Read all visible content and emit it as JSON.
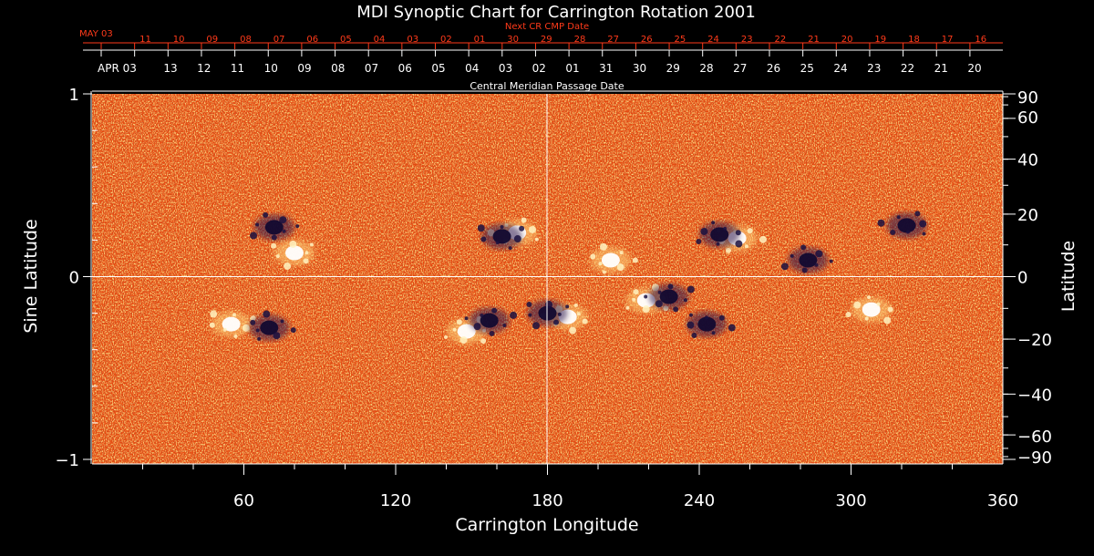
{
  "chart_data": {
    "type": "heatmap",
    "title": "MDI Synoptic Chart for Carrington Rotation 2001",
    "xlabel": "Carrington Longitude",
    "ylabel_left": "Sine Latitude",
    "ylabel_right": "Latitude",
    "xlim": [
      0,
      360
    ],
    "ylim": [
      -1,
      1
    ],
    "x_ticks": [
      60,
      120,
      180,
      240,
      300,
      360
    ],
    "y_ticks_left": [
      {
        "value": 1,
        "label": "1"
      },
      {
        "value": 0,
        "label": "0"
      },
      {
        "value": -1,
        "label": "−1"
      }
    ],
    "y_ticks_right_degrees": [
      {
        "deg": 90,
        "label": "90"
      },
      {
        "deg": 60,
        "label": "60"
      },
      {
        "deg": 40,
        "label": "40"
      },
      {
        "deg": 20,
        "label": "20"
      },
      {
        "deg": 0,
        "label": "0"
      },
      {
        "deg": -20,
        "label": "−20"
      },
      {
        "deg": -40,
        "label": "−40"
      },
      {
        "deg": -60,
        "label": "−60"
      },
      {
        "deg": -90,
        "label": "−90"
      }
    ],
    "central_meridian_label": "Central Meridian Passage Date",
    "next_cr_label": "Next CR CMP Date",
    "next_cr_month": "MAY 03",
    "next_cr_dates": [
      "11",
      "10",
      "09",
      "08",
      "07",
      "06",
      "05",
      "04",
      "03",
      "02",
      "01",
      "30",
      "29",
      "28",
      "27",
      "26",
      "25",
      "24",
      "23",
      "22",
      "21",
      "20",
      "19",
      "18",
      "17",
      "16"
    ],
    "cmp_month": "APR 03",
    "cmp_dates": [
      "13",
      "12",
      "11",
      "10",
      "09",
      "08",
      "07",
      "06",
      "05",
      "04",
      "03",
      "02",
      "01",
      "31",
      "30",
      "29",
      "28",
      "27",
      "26",
      "25",
      "24",
      "23",
      "22",
      "21",
      "20"
    ],
    "grid": "crosshair at longitude 180 and latitude 0",
    "colors": {
      "background": "#000000",
      "field_base": "#e8480e",
      "positive_polarity": "#ffffff",
      "negative_polarity": "#1a1040",
      "next_cr_text": "#ff3a1a",
      "axis_text": "#ffffff"
    },
    "active_regions": [
      {
        "lon": 80,
        "sinlat": 0.13,
        "polarity": "positive"
      },
      {
        "lon": 72,
        "sinlat": 0.27,
        "polarity": "negative"
      },
      {
        "lon": 168,
        "sinlat": 0.24,
        "polarity": "positive"
      },
      {
        "lon": 162,
        "sinlat": 0.22,
        "polarity": "negative"
      },
      {
        "lon": 205,
        "sinlat": 0.09,
        "polarity": "positive"
      },
      {
        "lon": 219,
        "sinlat": -0.13,
        "polarity": "positive"
      },
      {
        "lon": 228,
        "sinlat": -0.11,
        "polarity": "negative"
      },
      {
        "lon": 255,
        "sinlat": 0.21,
        "polarity": "positive"
      },
      {
        "lon": 248,
        "sinlat": 0.23,
        "polarity": "negative"
      },
      {
        "lon": 188,
        "sinlat": -0.22,
        "polarity": "positive"
      },
      {
        "lon": 180,
        "sinlat": -0.2,
        "polarity": "negative"
      },
      {
        "lon": 283,
        "sinlat": 0.09,
        "polarity": "negative"
      },
      {
        "lon": 322,
        "sinlat": 0.28,
        "polarity": "negative"
      },
      {
        "lon": 55,
        "sinlat": -0.26,
        "polarity": "positive"
      },
      {
        "lon": 70,
        "sinlat": -0.28,
        "polarity": "negative"
      },
      {
        "lon": 148,
        "sinlat": -0.3,
        "polarity": "positive"
      },
      {
        "lon": 157,
        "sinlat": -0.24,
        "polarity": "negative"
      },
      {
        "lon": 243,
        "sinlat": -0.26,
        "polarity": "negative"
      },
      {
        "lon": 308,
        "sinlat": -0.18,
        "polarity": "positive"
      }
    ]
  }
}
